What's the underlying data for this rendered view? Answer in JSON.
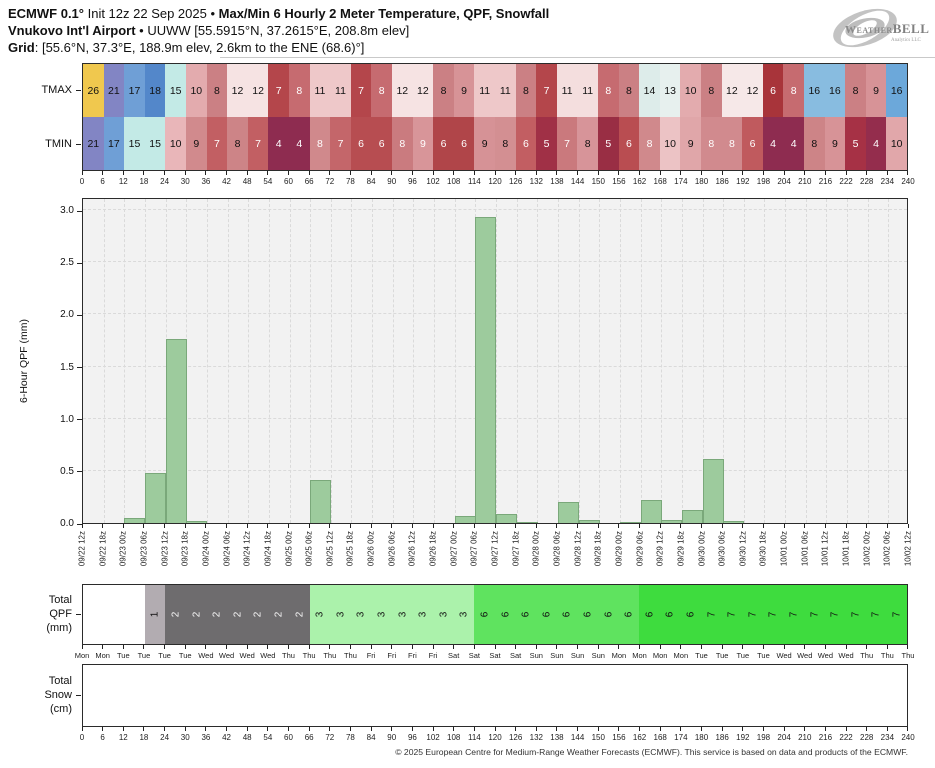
{
  "header": {
    "line1_bold1": "ECMWF 0.1°",
    "line1_mid": " Init 12z 22 Sep 2025 • ",
    "line1_bold2": "Max/Min 6 Hourly 2 Meter Temperature,  QPF,  Snowfall",
    "line2_bold": "Vnukovo Int'l Airport",
    "line2_rest": " • UUWW [55.5915°N, 37.2615°E, 208.8m elev]",
    "line3_bold": "Grid",
    "line3_rest": ": [55.6°N, 37.3°E, 188.9m elev, 2.6km to the ENE (68.6)°]"
  },
  "logo": {
    "part1": "Weather",
    "part2": "BELL",
    "subtitle": "Analytics LLC"
  },
  "footer": {
    "copyright": "© 2025 European Centre for Medium-Range Weather Forecasts (ECMWF). This service is based on data and products of the ECMWF."
  },
  "chart_data": [
    {
      "type": "heatmap",
      "title": "Max/Min 6 Hourly 2 Meter Temperature (°C)",
      "x_hours": [
        0,
        6,
        12,
        18,
        24,
        30,
        36,
        42,
        48,
        54,
        60,
        66,
        72,
        78,
        84,
        90,
        96,
        102,
        108,
        114,
        120,
        126,
        132,
        138,
        144,
        150,
        156,
        162,
        168,
        174,
        180,
        186,
        192,
        198,
        204,
        210,
        216,
        222,
        228,
        234,
        240
      ],
      "rows": [
        {
          "name": "TMAX",
          "cells": [
            [
              26,
              "#f0c84e",
              0
            ],
            [
              21,
              "#8285c4",
              0
            ],
            [
              17,
              "#6f9fd6",
              0
            ],
            [
              18,
              "#5387ca",
              0
            ],
            [
              15,
              "#c3eae6",
              0
            ],
            [
              10,
              "#e3abae",
              0
            ],
            [
              8,
              "#cb8084",
              0
            ],
            [
              12,
              "#f6e3e3",
              0
            ],
            [
              12,
              "#f6e3e3",
              0
            ],
            [
              7,
              "#b4464b",
              1
            ],
            [
              8,
              "#c66b70",
              1
            ],
            [
              11,
              "#eec8c9",
              0
            ],
            [
              11,
              "#eec8c9",
              0
            ],
            [
              7,
              "#b4464b",
              1
            ],
            [
              8,
              "#c66b70",
              1
            ],
            [
              12,
              "#f6e3e3",
              0
            ],
            [
              12,
              "#f6e3e3",
              0
            ],
            [
              8,
              "#cb8084",
              0
            ],
            [
              9,
              "#d79397",
              0
            ],
            [
              11,
              "#eec8c9",
              0
            ],
            [
              11,
              "#eec8c9",
              0
            ],
            [
              8,
              "#cb8084",
              0
            ],
            [
              7,
              "#b4464b",
              1
            ],
            [
              11,
              "#f4dede",
              0
            ],
            [
              11,
              "#f4dede",
              0
            ],
            [
              8,
              "#c66b70",
              1
            ],
            [
              8,
              "#cb8084",
              0
            ],
            [
              14,
              "#ddecea",
              0
            ],
            [
              13,
              "#e7f0ee",
              0
            ],
            [
              10,
              "#e3abae",
              0
            ],
            [
              8,
              "#cb8084",
              0
            ],
            [
              12,
              "#f6e8e8",
              0
            ],
            [
              12,
              "#f6e8e8",
              0
            ],
            [
              6,
              "#a8343a",
              1
            ],
            [
              8,
              "#c66b70",
              1
            ],
            [
              16,
              "#88bce0",
              0
            ],
            [
              16,
              "#88bce0",
              0
            ],
            [
              8,
              "#cb8084",
              0
            ],
            [
              9,
              "#d79397",
              0
            ],
            [
              16,
              "#6ca8da",
              0
            ]
          ]
        },
        {
          "name": "TMIN",
          "cells": [
            [
              21,
              "#8285c4",
              0
            ],
            [
              17,
              "#6f9fd6",
              0
            ],
            [
              15,
              "#c3eae6",
              0
            ],
            [
              15,
              "#c3eae6",
              0
            ],
            [
              10,
              "#e9b6b9",
              0
            ],
            [
              9,
              "#d18a8d",
              0
            ],
            [
              7,
              "#c25f63",
              1
            ],
            [
              8,
              "#cd8487",
              0
            ],
            [
              7,
              "#c25f63",
              1
            ],
            [
              4,
              "#8e2c50",
              1
            ],
            [
              4,
              "#8e2c50",
              1
            ],
            [
              8,
              "#d0898c",
              1
            ],
            [
              7,
              "#c4666a",
              1
            ],
            [
              6,
              "#b74d51",
              1
            ],
            [
              6,
              "#b74d51",
              1
            ],
            [
              8,
              "#ca7b7f",
              1
            ],
            [
              9,
              "#d89599",
              1
            ],
            [
              6,
              "#b04549",
              1
            ],
            [
              6,
              "#b04549",
              1
            ],
            [
              9,
              "#d69296",
              0
            ],
            [
              8,
              "#d38f92",
              0
            ],
            [
              6,
              "#c25e62",
              1
            ],
            [
              5,
              "#a03046",
              1
            ],
            [
              7,
              "#ca797d",
              1
            ],
            [
              8,
              "#d79499",
              0
            ],
            [
              5,
              "#992e44",
              1
            ],
            [
              6,
              "#b94d51",
              1
            ],
            [
              8,
              "#d0898c",
              1
            ],
            [
              10,
              "#ecc3c5",
              0
            ],
            [
              9,
              "#e0a6a9",
              0
            ],
            [
              8,
              "#d18a8e",
              1
            ],
            [
              8,
              "#d18a8e",
              1
            ],
            [
              6,
              "#c05a5e",
              1
            ],
            [
              4,
              "#8e2c50",
              1
            ],
            [
              4,
              "#8e2c50",
              1
            ],
            [
              8,
              "#cd8487",
              0
            ],
            [
              9,
              "#d79397",
              0
            ],
            [
              5,
              "#a63145",
              1
            ],
            [
              4,
              "#942d4d",
              1
            ],
            [
              10,
              "#e1a7aa",
              0
            ]
          ]
        }
      ]
    },
    {
      "type": "bar",
      "ylabel": "6-Hour QPF (mm)",
      "ylim": [
        0,
        3.0
      ],
      "yticks": [
        "0.0",
        "0.5",
        "1.0",
        "1.5",
        "2.0",
        "2.5",
        "3.0"
      ],
      "grid": true,
      "plot_bg": "#f2f2f2",
      "grid_color": "#dadada",
      "bar_color": "#9dcb9d",
      "bar_edge": "#7aa87a",
      "x_labels": [
        "09/22 12z",
        "09/22 18z",
        "09/23 00z",
        "09/23 06z",
        "09/23 12z",
        "09/23 18z",
        "09/24 00z",
        "09/24 06z",
        "09/24 12z",
        "09/24 18z",
        "09/25 00z",
        "09/25 06z",
        "09/25 12z",
        "09/25 18z",
        "09/26 00z",
        "09/26 06z",
        "09/26 12z",
        "09/26 18z",
        "09/27 00z",
        "09/27 06z",
        "09/27 12z",
        "09/27 18z",
        "09/28 00z",
        "09/28 06z",
        "09/28 12z",
        "09/28 18z",
        "09/29 00z",
        "09/29 06z",
        "09/29 12z",
        "09/29 18z",
        "09/30 00z",
        "09/30 06z",
        "09/30 12z",
        "09/30 18z",
        "10/01 00z",
        "10/01 06z",
        "10/01 12z",
        "10/01 18z",
        "10/02 00z",
        "10/02 06z",
        "10/02 12z"
      ],
      "values": [
        0,
        0,
        0.05,
        0.48,
        1.76,
        0.02,
        0,
        0,
        0,
        0,
        0,
        0.41,
        0,
        0,
        0,
        0,
        0,
        0,
        0.07,
        2.93,
        0.09,
        0.01,
        0,
        0.2,
        0.03,
        0,
        0.01,
        0.22,
        0.03,
        0.12,
        0.61,
        0.02,
        0,
        0,
        0,
        0,
        0,
        0,
        0,
        0
      ]
    },
    {
      "type": "heatmap",
      "title": "Total QPF (mm)",
      "label_lines": [
        "Total",
        "QPF",
        "(mm)"
      ],
      "cells": [
        [
          "",
          "#ffffff",
          0
        ],
        [
          "",
          "#ffffff",
          0
        ],
        [
          "",
          "#ffffff",
          0
        ],
        [
          "1",
          "#b2acb1",
          0
        ],
        [
          "2",
          "#6e6c6e",
          1
        ],
        [
          "2",
          "#6e6c6e",
          1
        ],
        [
          "2",
          "#6e6c6e",
          1
        ],
        [
          "2",
          "#6e6c6e",
          1
        ],
        [
          "2",
          "#6e6c6e",
          1
        ],
        [
          "2",
          "#6e6c6e",
          1
        ],
        [
          "2",
          "#6e6c6e",
          1
        ],
        [
          "3",
          "#abf2ab",
          0
        ],
        [
          "3",
          "#abf2ab",
          0
        ],
        [
          "3",
          "#abf2ab",
          0
        ],
        [
          "3",
          "#abf2ab",
          0
        ],
        [
          "3",
          "#abf2ab",
          0
        ],
        [
          "3",
          "#abf2ab",
          0
        ],
        [
          "3",
          "#abf2ab",
          0
        ],
        [
          "3",
          "#abf2ab",
          0
        ],
        [
          "6",
          "#5fe35f",
          0
        ],
        [
          "6",
          "#5fe35f",
          0
        ],
        [
          "6",
          "#5fe35f",
          0
        ],
        [
          "6",
          "#5fe35f",
          0
        ],
        [
          "6",
          "#5fe35f",
          0
        ],
        [
          "6",
          "#5fe35f",
          0
        ],
        [
          "6",
          "#5fe35f",
          0
        ],
        [
          "6",
          "#5fe35f",
          0
        ],
        [
          "6",
          "#3edc3e",
          0
        ],
        [
          "6",
          "#3edc3e",
          0
        ],
        [
          "6",
          "#3edc3e",
          0
        ],
        [
          "7",
          "#3edc3e",
          0
        ],
        [
          "7",
          "#3edc3e",
          0
        ],
        [
          "7",
          "#3edc3e",
          0
        ],
        [
          "7",
          "#3edc3e",
          0
        ],
        [
          "7",
          "#3edc3e",
          0
        ],
        [
          "7",
          "#3edc3e",
          0
        ],
        [
          "7",
          "#3edc3e",
          0
        ],
        [
          "7",
          "#3edc3e",
          0
        ],
        [
          "7",
          "#3edc3e",
          0
        ],
        [
          "7",
          "#3edc3e",
          0
        ]
      ],
      "day_labels": [
        "Mon",
        "Mon",
        "Tue",
        "Tue",
        "Tue",
        "Tue",
        "Wed",
        "Wed",
        "Wed",
        "Wed",
        "Thu",
        "Thu",
        "Thu",
        "Thu",
        "Fri",
        "Fri",
        "Fri",
        "Fri",
        "Sat",
        "Sat",
        "Sat",
        "Sat",
        "Sun",
        "Sun",
        "Sun",
        "Sun",
        "Mon",
        "Mon",
        "Mon",
        "Mon",
        "Tue",
        "Tue",
        "Tue",
        "Tue",
        "Wed",
        "Wed",
        "Wed",
        "Wed",
        "Thu",
        "Thu",
        "Thu"
      ]
    },
    {
      "type": "heatmap",
      "title": "Total Snow (cm)",
      "label_lines": [
        "Total",
        "Snow",
        "(cm)"
      ],
      "cells": []
    }
  ]
}
